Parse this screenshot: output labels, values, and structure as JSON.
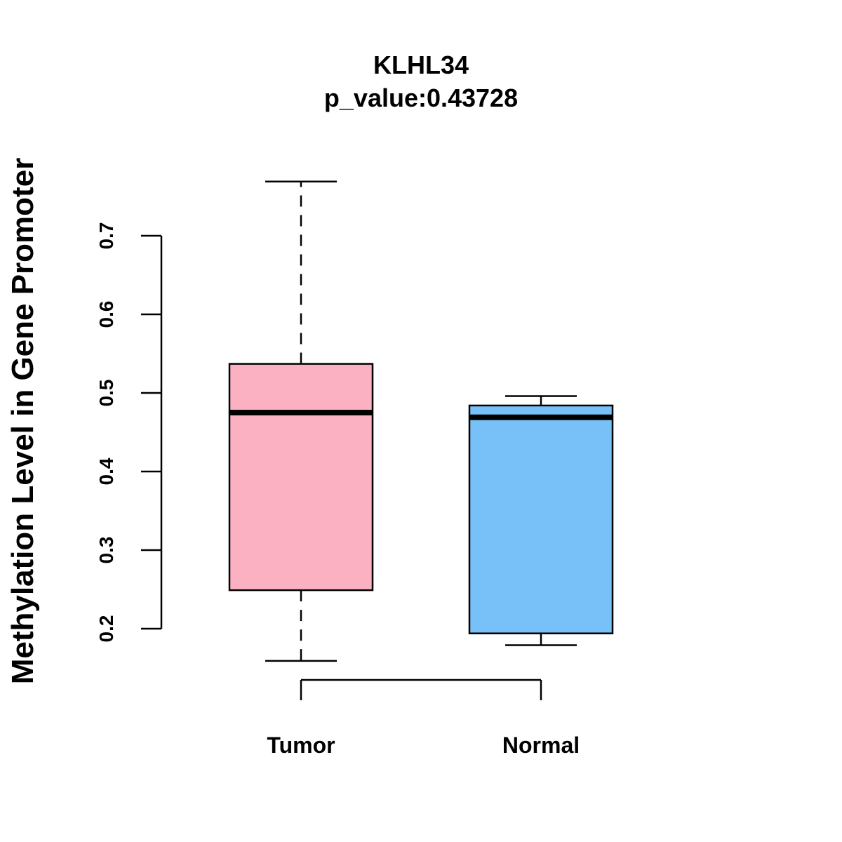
{
  "chart_data": {
    "type": "boxplot",
    "title": "KLHL34",
    "subtitle": "p_value:0.43728",
    "xlabel": "",
    "ylabel": "Methylation Level in Gene Promoter",
    "ylim": [
      0.2,
      0.7
    ],
    "yticks": [
      "0.2",
      "0.3",
      "0.4",
      "0.5",
      "0.6",
      "0.7"
    ],
    "grid": false,
    "categories": [
      "Tumor",
      "Normal"
    ],
    "series": [
      {
        "name": "Tumor",
        "color": "#FBB1C2",
        "whisker_style": "dashed",
        "min": 0.159,
        "q1": 0.249,
        "median": 0.475,
        "q3": 0.537,
        "max": 0.769
      },
      {
        "name": "Normal",
        "color": "#77C1F8",
        "whisker_style": "solid",
        "min": 0.179,
        "q1": 0.194,
        "median": 0.469,
        "q3": 0.484,
        "max": 0.496
      }
    ]
  }
}
